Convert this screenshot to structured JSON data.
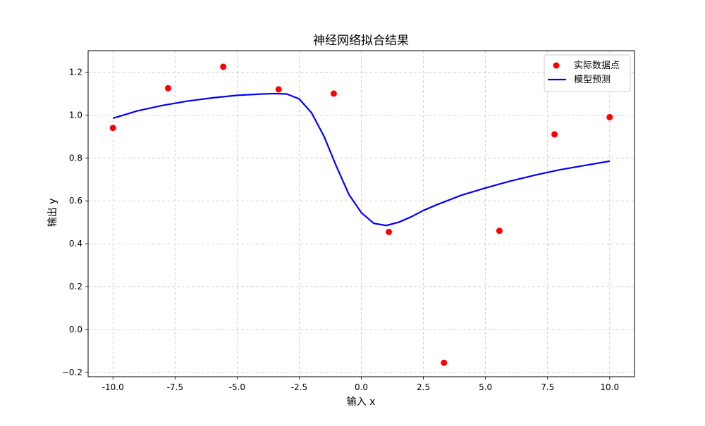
{
  "chart_data": {
    "type": "scatter",
    "title": "神经网络拟合结果",
    "xlabel": "输入 x",
    "ylabel": "输出 y",
    "xlim": [
      -11.0,
      11.0
    ],
    "ylim": [
      -0.22,
      1.3
    ],
    "xticks": [
      -10.0,
      -7.5,
      -5.0,
      -2.5,
      0.0,
      2.5,
      5.0,
      7.5,
      10.0
    ],
    "xtick_labels": [
      "-10.0",
      "-7.5",
      "-5.0",
      "-2.5",
      "0.0",
      "2.5",
      "5.0",
      "7.5",
      "10.0"
    ],
    "yticks": [
      -0.2,
      0.0,
      0.2,
      0.4,
      0.6,
      0.8,
      1.0,
      1.2
    ],
    "ytick_labels": [
      "−0.2",
      "0.0",
      "0.2",
      "0.4",
      "0.6",
      "0.8",
      "1.0",
      "1.2"
    ],
    "grid": true,
    "legend_position": "top-right",
    "series": [
      {
        "name": "实际数据点",
        "kind": "scatter",
        "color": "#ff0000",
        "x": [
          -10.0,
          -7.78,
          -5.56,
          -3.33,
          -1.11,
          1.11,
          3.33,
          5.56,
          7.78,
          10.0
        ],
        "y": [
          0.94,
          1.125,
          1.225,
          1.12,
          1.1,
          0.455,
          -0.155,
          0.46,
          0.91,
          0.99
        ]
      },
      {
        "name": "模型预测",
        "kind": "line",
        "color": "#0000ff",
        "x": [
          -10.0,
          -9.0,
          -8.0,
          -7.0,
          -6.0,
          -5.0,
          -4.0,
          -3.5,
          -3.0,
          -2.5,
          -2.0,
          -1.5,
          -1.0,
          -0.5,
          0.0,
          0.5,
          1.0,
          1.5,
          2.0,
          2.5,
          3.0,
          4.0,
          5.0,
          6.0,
          7.0,
          8.0,
          9.0,
          10.0
        ],
        "y": [
          0.985,
          1.02,
          1.045,
          1.065,
          1.08,
          1.092,
          1.098,
          1.1,
          1.098,
          1.075,
          1.01,
          0.9,
          0.76,
          0.63,
          0.545,
          0.495,
          0.485,
          0.5,
          0.525,
          0.555,
          0.58,
          0.625,
          0.66,
          0.692,
          0.72,
          0.745,
          0.765,
          0.785
        ]
      }
    ]
  }
}
